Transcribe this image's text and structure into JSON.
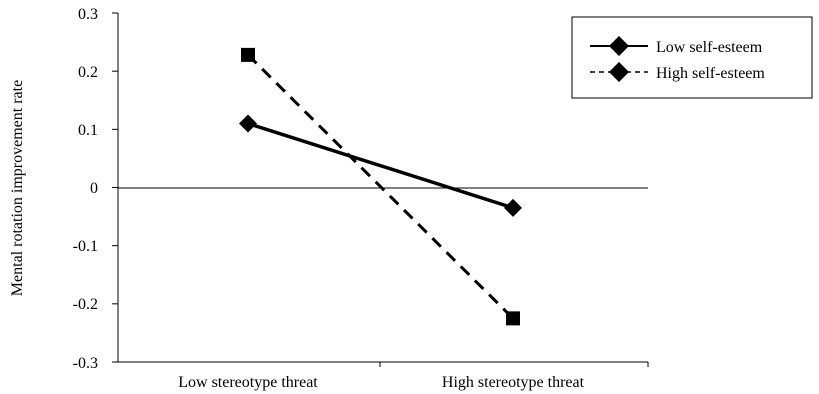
{
  "chart_data": {
    "type": "line",
    "title": "",
    "xlabel": "",
    "ylabel": "Mental rotation improvement rate",
    "categories": [
      "Low stereotype threat",
      "High stereotype threat"
    ],
    "ylim": [
      -0.3,
      0.3
    ],
    "yticks": [
      "0.3",
      "0.2",
      "0.1",
      "0",
      "-0.1",
      "-0.2",
      "-0.3"
    ],
    "ytick_values": [
      0.3,
      0.2,
      0.1,
      0,
      -0.1,
      -0.2,
      -0.3
    ],
    "grid": false,
    "legend_position": "top-right",
    "series": [
      {
        "name": "Low self-esteem",
        "values": [
          0.11,
          -0.035
        ],
        "line_style": "solid",
        "marker": "diamond",
        "color": "#000000"
      },
      {
        "name": "High self-esteem",
        "values": [
          0.228,
          -0.225
        ],
        "line_style": "dashed",
        "marker": "square",
        "color": "#000000"
      }
    ]
  }
}
